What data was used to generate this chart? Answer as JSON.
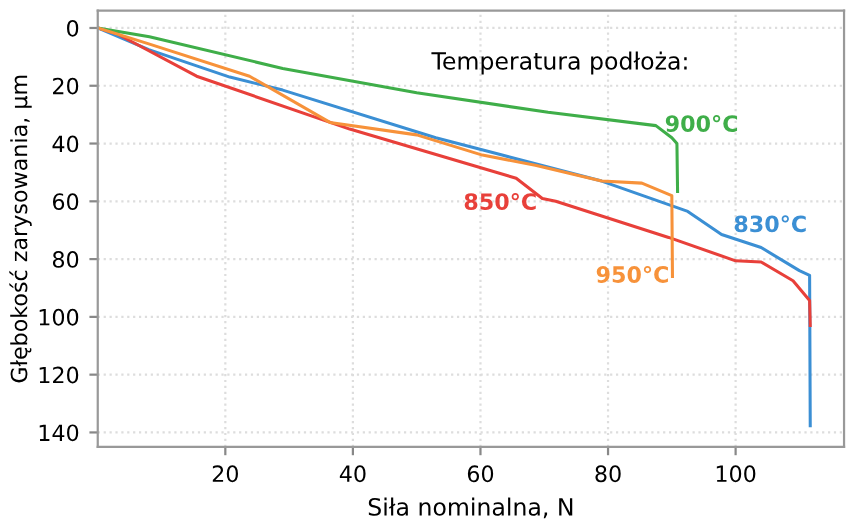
{
  "chart_data": {
    "type": "line",
    "xlabel": "Siła nominalna, N",
    "ylabel": "Głębokość zarysowania, µm",
    "xlim": [
      0,
      117
    ],
    "xticks": [
      20,
      40,
      60,
      80,
      100
    ],
    "ylim": [
      145,
      -6
    ],
    "yticks": [
      0,
      20,
      40,
      60,
      80,
      100,
      120,
      140
    ],
    "grid": true,
    "series": [
      {
        "name": "830°C",
        "color": "#3b8fd4",
        "x": [
          0,
          8,
          20.7,
          29,
          53,
          63.4,
          79,
          92.5,
          97.8,
          104,
          110,
          111.6,
          111.7
        ],
        "values": [
          0,
          7.5,
          17,
          21.5,
          38,
          44,
          53,
          63.5,
          71.5,
          76,
          84,
          85.6,
          137.7
        ]
      },
      {
        "name": "850°C",
        "color": "#e8403a",
        "x": [
          0,
          3,
          15.5,
          39.5,
          65.6,
          69.7,
          71.8,
          89.5,
          100,
          104,
          109,
          111.6,
          111.7
        ],
        "values": [
          0,
          2,
          16.7,
          35,
          52,
          59,
          60,
          72.5,
          80.6,
          81,
          87.5,
          94.3,
          103
        ]
      },
      {
        "name": "900°C",
        "color": "#3fae49",
        "x": [
          0,
          8.1,
          29,
          50,
          70.6,
          87.5,
          90,
          90.8,
          90.9
        ],
        "values": [
          0,
          3,
          14,
          22.4,
          29.2,
          33.8,
          38,
          40,
          56.6
        ]
      },
      {
        "name": "950°C",
        "color": "#f7923a",
        "x": [
          0,
          8,
          23.8,
          36.4,
          50,
          60.3,
          68.6,
          79,
          85.3,
          90,
          90.1
        ],
        "values": [
          0,
          5.5,
          16.7,
          32.7,
          37,
          44,
          47.5,
          53,
          53.7,
          58,
          86
        ]
      }
    ],
    "annotations": [
      "Temperatura podłoża:"
    ]
  }
}
